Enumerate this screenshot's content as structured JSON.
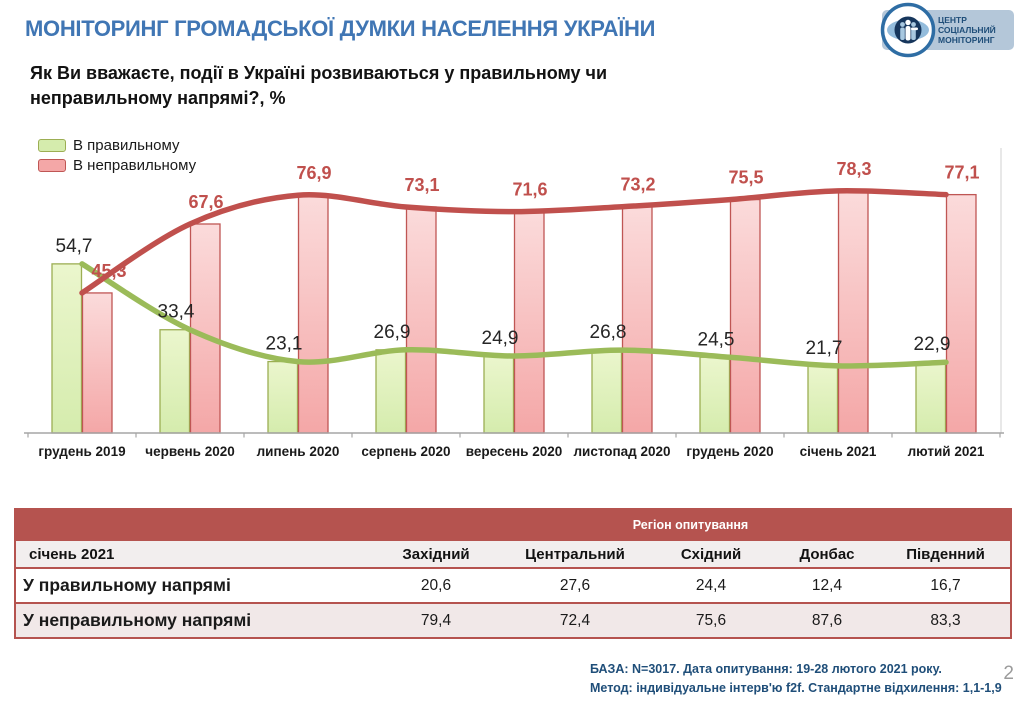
{
  "page": {
    "number": "2"
  },
  "header": {
    "title": "МОНІТОРИНГ ГРОМАДСЬКОЇ ДУМКИ НАСЕЛЕННЯ УКРАЇНИ",
    "title_color": "#4076b4"
  },
  "logo": {
    "lines": [
      "ЦЕНТР",
      "СОЦІАЛЬНИЙ",
      "МОНІТОРИНГ"
    ],
    "bg": "#b4c7d9",
    "ring_color": "#2e6da4",
    "text_color": "#1f4e79"
  },
  "question": {
    "lines": [
      "Як Ви вважаєте, події в Україні розвиваються у правильному чи",
      "неправильному напрямі?, %"
    ]
  },
  "chart_data": {
    "type": "bar",
    "subtype": "bar-with-smooth-line-overlay",
    "categories": [
      "грудень 2019",
      "червень 2020",
      "липень 2020",
      "серпень 2020",
      "вересень 2020",
      "листопад 2020",
      "грудень 2020",
      "січень 2021",
      "лютий 2021"
    ],
    "series": [
      {
        "name": "В правильному",
        "values": [
          54.7,
          33.4,
          23.1,
          26.9,
          24.9,
          26.8,
          24.5,
          21.7,
          22.9
        ],
        "line_color": "#9bbb59",
        "bar_fill_top": "#ebf6cd",
        "bar_fill_bottom": "#d5ecad",
        "bar_border": "#9cae53",
        "label_color": "#262626"
      },
      {
        "name": "В неправильному",
        "values": [
          45.3,
          67.6,
          76.9,
          73.1,
          71.6,
          73.2,
          75.5,
          78.3,
          77.1
        ],
        "line_color": "#c0504d",
        "bar_fill_top": "#fbdbdb",
        "bar_fill_bottom": "#f4a7a7",
        "bar_border": "#bf5654",
        "label_color": "#c0504d"
      }
    ],
    "ylim": [
      0,
      98
    ],
    "grid": false,
    "legend_position": "top-left",
    "decimal_separator": ",",
    "axis_color": "#a6a6a6",
    "title": "Як Ви вважаєте, події в Україні розвиваються у правильному чи неправильному напрямі?, %",
    "xlabel": "",
    "ylabel": ""
  },
  "table": {
    "group_header": "Регіон опитування",
    "row_header": "січень 2021",
    "columns": [
      "Західний",
      "Центральний",
      "Східний",
      "Донбас",
      "Південний"
    ],
    "rows": [
      {
        "label": "У правильному напрямі",
        "values": [
          "20,6",
          "27,6",
          "24,4",
          "12,4",
          "16,7"
        ]
      },
      {
        "label": "У неправильному напрямі",
        "values": [
          "79,4",
          "72,4",
          "75,6",
          "87,6",
          "83,3"
        ]
      }
    ],
    "header_bg": "#b5534f",
    "header_text_color": "#ffffff",
    "subheader_bg": "#f2eeee",
    "row_alt_bg": "#f1e8e8",
    "border_color": "#b5534f"
  },
  "footer": {
    "lines": [
      "БАЗА: N=3017. Дата опитування: 19-28 лютого 2021 року.",
      "Метод: індивідуальне інтерв'ю f2f. Стандартне відхилення: 1,1-1,9"
    ],
    "color": "#1f4e79"
  }
}
